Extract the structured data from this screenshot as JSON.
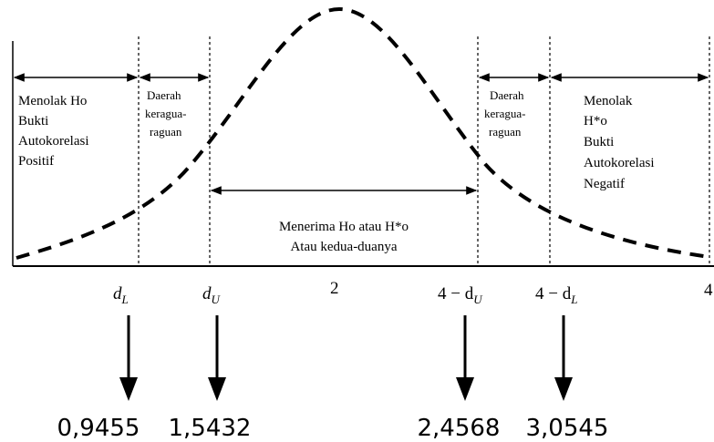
{
  "regions": {
    "reject_positive": [
      "Menolak Ho",
      "Bukti",
      "Autokorelasi",
      "Positif"
    ],
    "doubt_left": [
      "Daerah",
      "keragua-",
      "raguan"
    ],
    "accept": [
      "Menerima Ho atau H*o",
      "Atau kedua-duanya"
    ],
    "doubt_right": [
      "Daerah",
      "keragua-",
      "raguan"
    ],
    "reject_negative": [
      "Menolak",
      "H*o",
      "Bukti",
      "Autokorelasi",
      "Negatif"
    ]
  },
  "axis_labels": {
    "d_l": "d",
    "d_l_sub": "L",
    "d_u": "d",
    "d_u_sub": "U",
    "center": "2",
    "four_minus_du_prefix": "4 − d",
    "four_minus_du_sub": "U",
    "four_minus_dl_prefix": "4 − d",
    "four_minus_dl_sub": "L",
    "right_end": "4"
  },
  "values": {
    "dl": "0,9455",
    "du": "1,5432",
    "four_minus_du": "2,4568",
    "four_minus_dl": "3,0545"
  },
  "colors": {
    "ink": "#000000",
    "background": "#ffffff"
  }
}
